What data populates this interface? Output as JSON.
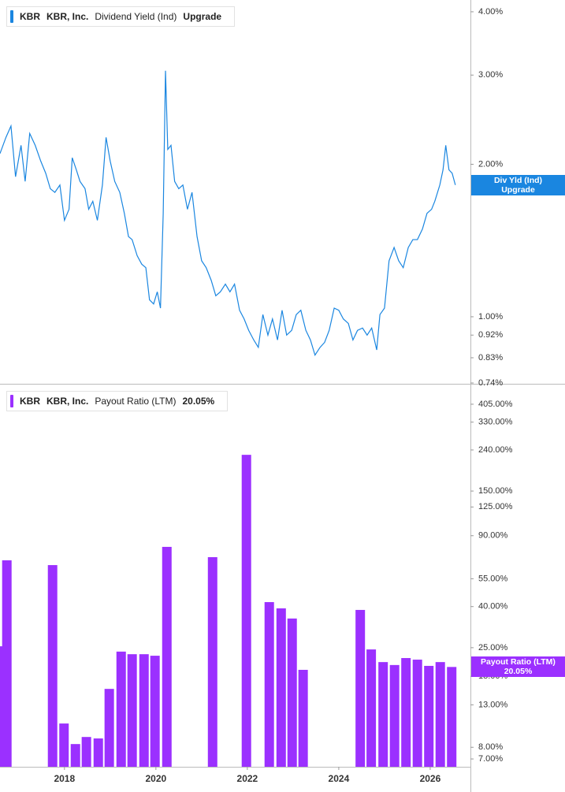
{
  "chart_data": [
    {
      "type": "line",
      "ticker": "KBR",
      "company": "KBR, Inc.",
      "status": "Upgrade",
      "badge_label": "Div Yld (Ind)",
      "yscale": "log",
      "xlim": [
        2016.59,
        2026.88
      ],
      "ylim": [
        0.74,
        4.22
      ],
      "yticks": [
        {
          "value": 4,
          "label": "4.00%"
        },
        {
          "value": 3,
          "label": "3.00%"
        },
        {
          "value": 2,
          "label": "2.00%"
        },
        {
          "value": 1,
          "label": "1.00%"
        },
        {
          "value": 0.92,
          "label": "0.92%"
        },
        {
          "value": 0.83,
          "label": "0.83%"
        },
        {
          "value": 0.74,
          "label": "0.74%"
        }
      ],
      "x": [
        2016.59,
        2016.72,
        2016.83,
        2016.93,
        2017.05,
        2017.14,
        2017.24,
        2017.36,
        2017.48,
        2017.59,
        2017.69,
        2017.79,
        2017.9,
        2018.0,
        2018.1,
        2018.17,
        2018.26,
        2018.34,
        2018.45,
        2018.53,
        2018.62,
        2018.72,
        2018.83,
        2018.91,
        2019.0,
        2019.1,
        2019.21,
        2019.31,
        2019.4,
        2019.48,
        2019.59,
        2019.69,
        2019.78,
        2019.86,
        2019.95,
        2020.03,
        2020.1,
        2020.16,
        2020.21,
        2020.26,
        2020.33,
        2020.41,
        2020.5,
        2020.59,
        2020.69,
        2020.79,
        2020.9,
        2021.0,
        2021.1,
        2021.21,
        2021.31,
        2021.41,
        2021.52,
        2021.62,
        2021.72,
        2021.83,
        2021.93,
        2022.03,
        2022.14,
        2022.24,
        2022.34,
        2022.45,
        2022.55,
        2022.66,
        2022.76,
        2022.86,
        2022.97,
        2023.07,
        2023.17,
        2023.28,
        2023.38,
        2023.48,
        2023.59,
        2023.69,
        2023.79,
        2023.9,
        2024.0,
        2024.1,
        2024.21,
        2024.31,
        2024.41,
        2024.52,
        2024.62,
        2024.72,
        2024.83,
        2024.9,
        2025.0,
        2025.1,
        2025.21,
        2025.31,
        2025.41,
        2025.52,
        2025.62,
        2025.72,
        2025.83,
        2025.93,
        2026.03,
        2026.1,
        2026.21,
        2026.28,
        2026.34,
        2026.41,
        2026.48,
        2026.55
      ],
      "series": [
        {
          "name": "Dividend Yield (Ind)",
          "color": "#1a86e0",
          "values": [
            2.1,
            2.26,
            2.38,
            1.89,
            2.18,
            1.85,
            2.3,
            2.18,
            2.03,
            1.92,
            1.79,
            1.76,
            1.82,
            1.55,
            1.63,
            2.06,
            1.95,
            1.85,
            1.79,
            1.63,
            1.69,
            1.55,
            1.82,
            2.26,
            2.03,
            1.85,
            1.76,
            1.6,
            1.44,
            1.42,
            1.32,
            1.27,
            1.25,
            1.08,
            1.06,
            1.12,
            1.04,
            1.6,
            3.06,
            2.14,
            2.18,
            1.85,
            1.79,
            1.82,
            1.63,
            1.76,
            1.44,
            1.29,
            1.25,
            1.18,
            1.1,
            1.12,
            1.16,
            1.12,
            1.16,
            1.03,
            0.99,
            0.94,
            0.9,
            0.87,
            1.01,
            0.92,
            0.99,
            0.9,
            1.03,
            0.92,
            0.94,
            1.01,
            1.03,
            0.94,
            0.9,
            0.84,
            0.87,
            0.89,
            0.94,
            1.04,
            1.03,
            0.99,
            0.97,
            0.9,
            0.94,
            0.95,
            0.92,
            0.95,
            0.86,
            1.01,
            1.04,
            1.29,
            1.37,
            1.29,
            1.25,
            1.37,
            1.42,
            1.42,
            1.49,
            1.6,
            1.63,
            1.69,
            1.82,
            1.95,
            2.18,
            1.95,
            1.92,
            1.82
          ]
        }
      ]
    },
    {
      "type": "bar",
      "ticker": "KBR",
      "company": "KBR, Inc.",
      "yscale": "log",
      "xlim": [
        2016.59,
        2026.88
      ],
      "xticks": [
        2018,
        2020,
        2022,
        2024,
        2026
      ],
      "ylim": [
        6.4,
        498
      ],
      "yticks": [
        {
          "value": 405,
          "label": "405.00%"
        },
        {
          "value": 330,
          "label": "330.00%"
        },
        {
          "value": 240,
          "label": "240.00%"
        },
        {
          "value": 150,
          "label": "150.00%"
        },
        {
          "value": 125,
          "label": "125.00%"
        },
        {
          "value": 90,
          "label": "90.00%"
        },
        {
          "value": 55,
          "label": "55.00%"
        },
        {
          "value": 40,
          "label": "40.00%"
        },
        {
          "value": 25,
          "label": "25.00%"
        },
        {
          "value": 18,
          "label": "18.00%"
        },
        {
          "value": 13,
          "label": "13.00%"
        },
        {
          "value": 8,
          "label": "8.00%"
        },
        {
          "value": 7,
          "label": "7.00%"
        }
      ],
      "x": [
        2016.58,
        2016.74,
        2017.74,
        2017.99,
        2018.24,
        2018.48,
        2018.74,
        2018.98,
        2019.24,
        2019.48,
        2019.74,
        2019.98,
        2020.24,
        2021.24,
        2021.98,
        2022.48,
        2022.74,
        2022.98,
        2023.22,
        2024.47,
        2024.71,
        2024.97,
        2025.22,
        2025.47,
        2025.72,
        2025.97,
        2026.22,
        2026.47
      ],
      "series": [
        {
          "name": "Payout Ratio (LTM)",
          "color": "#9b30ff",
          "values": [
            25.4,
            67.9,
            64.3,
            10.5,
            8.3,
            9.0,
            8.85,
            15.6,
            23.9,
            23.2,
            23.2,
            22.8,
            79.2,
            70.4,
            227,
            42.1,
            39.2,
            34.9,
            19.4,
            38.5,
            24.5,
            21.2,
            20.5,
            22.2,
            21.8,
            20.3,
            21.2,
            20.05
          ],
          "value_labels": [
            null,
            null,
            null,
            null,
            null,
            null,
            null,
            null,
            null,
            null,
            null,
            null,
            null,
            null,
            null,
            null,
            null,
            null,
            null,
            null,
            null,
            null,
            null,
            null,
            null,
            null,
            null,
            "20.05%"
          ]
        }
      ]
    }
  ]
}
